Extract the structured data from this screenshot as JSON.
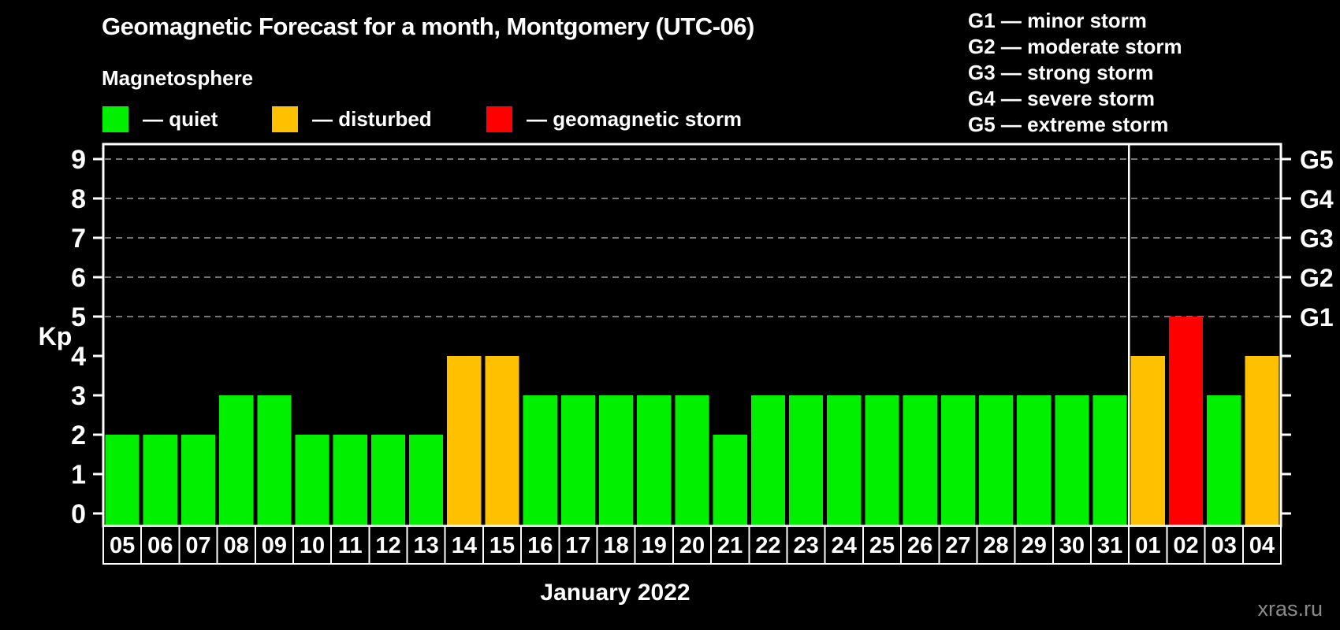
{
  "page": {
    "background": "#000000"
  },
  "header": {
    "subtitle": "Magnetosphere"
  },
  "legend": {
    "items": [
      {
        "key": "quiet",
        "label": "— quiet"
      },
      {
        "key": "disturbed",
        "label": "— disturbed"
      },
      {
        "key": "storm",
        "label": "— geomagnetic storm"
      }
    ]
  },
  "g_legend": {
    "items": [
      "G1 — minor storm",
      "G2 — moderate storm",
      "G3 — strong storm",
      "G4 — severe storm",
      "G5 — extreme storm"
    ]
  },
  "colors": {
    "quiet": "#00f000",
    "disturbed": "#ffc000",
    "storm": "#ff0000",
    "axis": "#ffffff",
    "grid": "#9a9a9a",
    "text": "#ffffff",
    "watermark": "#8a8a8a",
    "background": "#000000"
  },
  "chart_data": {
    "type": "bar",
    "title": "Geomagnetic Forecast for a month, Montgomery (UTC-06)",
    "xlabel": "January 2022",
    "ylabel": "Kp",
    "ylim": [
      0,
      9
    ],
    "categories": [
      "05",
      "06",
      "07",
      "08",
      "09",
      "10",
      "11",
      "12",
      "13",
      "14",
      "15",
      "16",
      "17",
      "18",
      "19",
      "20",
      "21",
      "22",
      "23",
      "24",
      "25",
      "26",
      "27",
      "28",
      "29",
      "30",
      "31",
      "01",
      "02",
      "03",
      "04"
    ],
    "values": [
      2,
      2,
      2,
      3,
      3,
      2,
      2,
      2,
      2,
      4,
      4,
      3,
      3,
      3,
      3,
      3,
      2,
      3,
      3,
      3,
      3,
      3,
      3,
      3,
      3,
      3,
      3,
      4,
      5,
      3,
      4
    ],
    "states": [
      "quiet",
      "quiet",
      "quiet",
      "quiet",
      "quiet",
      "quiet",
      "quiet",
      "quiet",
      "quiet",
      "disturbed",
      "disturbed",
      "quiet",
      "quiet",
      "quiet",
      "quiet",
      "quiet",
      "quiet",
      "quiet",
      "quiet",
      "quiet",
      "quiet",
      "quiet",
      "quiet",
      "quiet",
      "quiet",
      "quiet",
      "quiet",
      "disturbed",
      "storm",
      "quiet",
      "disturbed"
    ],
    "month_boundary_index": 27,
    "y_ticks": [
      0,
      1,
      2,
      3,
      4,
      5,
      6,
      7,
      8,
      9
    ],
    "grid_levels": [
      5,
      6,
      7,
      8,
      9
    ],
    "right_axis": [
      {
        "kp": 5,
        "label": "G1"
      },
      {
        "kp": 6,
        "label": "G2"
      },
      {
        "kp": 7,
        "label": "G3"
      },
      {
        "kp": 8,
        "label": "G4"
      },
      {
        "kp": 9,
        "label": "G5"
      }
    ],
    "grid": "dashed horizontal lines at Kp 5-9 only",
    "legend_position": "top-left"
  },
  "footer": {
    "watermark": "xras.ru"
  }
}
